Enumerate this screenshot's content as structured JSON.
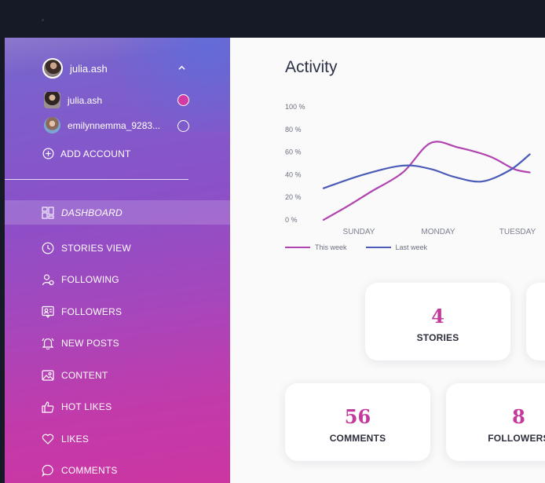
{
  "account": {
    "current": "julia.ash",
    "list": [
      {
        "name": "julia.ash",
        "selected": true
      },
      {
        "name": "emilynnemma_9283...",
        "selected": false
      }
    ],
    "add_label": "ADD ACCOUNT"
  },
  "nav": [
    {
      "label": "DASHBOARD",
      "icon": "dashboard-icon",
      "active": true
    },
    {
      "label": "STORIES VIEW",
      "icon": "clock-icon"
    },
    {
      "label": "FOLLOWING",
      "icon": "user-add-icon"
    },
    {
      "label": "FOLLOWERS",
      "icon": "user-card-icon"
    },
    {
      "label": "NEW POSTS",
      "icon": "bell-icon"
    },
    {
      "label": "CONTENT",
      "icon": "image-icon"
    },
    {
      "label": "HOT LIKES",
      "icon": "thumbs-up-icon"
    },
    {
      "label": "LIKES",
      "icon": "heart-icon"
    },
    {
      "label": "COMMENTS",
      "icon": "comment-icon"
    }
  ],
  "main": {
    "title": "Activity",
    "stats": [
      {
        "value": "4",
        "label": "STORIES"
      },
      {
        "value": "56",
        "label": "COMMENTS"
      },
      {
        "value": "8",
        "label": "FOLLOWERS"
      }
    ]
  },
  "chart_data": {
    "type": "line",
    "x": [
      "SUNDAY",
      "MONDAY",
      "TUESDAY"
    ],
    "yticks": [
      "100 %",
      "80 %",
      "60 %",
      "40 %",
      "20 %",
      "0 %"
    ],
    "ylim": [
      0,
      100
    ],
    "series": [
      {
        "name": "This week",
        "color": "#b043b0",
        "points": [
          [
            0.0,
            0
          ],
          [
            0.3,
            12
          ],
          [
            0.6,
            25
          ],
          [
            1.0,
            42
          ],
          [
            1.35,
            68
          ],
          [
            1.7,
            64
          ],
          [
            2.1,
            56
          ],
          [
            2.4,
            45
          ],
          [
            2.6,
            42
          ]
        ]
      },
      {
        "name": "Last week",
        "color": "#4b5bb8",
        "points": [
          [
            0.0,
            28
          ],
          [
            0.5,
            40
          ],
          [
            1.0,
            48
          ],
          [
            1.35,
            45
          ],
          [
            1.65,
            38
          ],
          [
            2.0,
            34
          ],
          [
            2.35,
            44
          ],
          [
            2.6,
            58
          ]
        ]
      }
    ]
  }
}
